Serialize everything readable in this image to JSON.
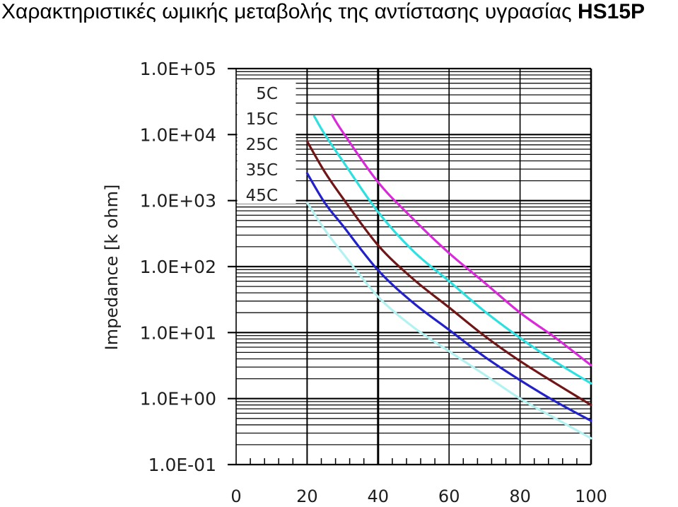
{
  "page": {
    "title": "Χαρακτηριστικές ωμικής μεταβολής της αντίστασης υγρασίας",
    "title_model": "HS15P"
  },
  "chart_data": {
    "type": "line",
    "ylabel": "Impedance [k ohm]",
    "xlim": [
      0,
      100
    ],
    "ylim": [
      0.1,
      100000
    ],
    "yscale": "log",
    "grid": true,
    "legend_position": "top-left",
    "x_ticks": [
      {
        "value": 0,
        "label": "0"
      },
      {
        "value": 20,
        "label": "20"
      },
      {
        "value": 40,
        "label": "40"
      },
      {
        "value": 60,
        "label": "60"
      },
      {
        "value": 80,
        "label": "80"
      },
      {
        "value": 100,
        "label": "100"
      }
    ],
    "y_ticks": [
      {
        "value": 100000,
        "label": "1.0E+05"
      },
      {
        "value": 10000,
        "label": "1.0E+04"
      },
      {
        "value": 1000,
        "label": "1.0E+03"
      },
      {
        "value": 100,
        "label": "1.0E+02"
      },
      {
        "value": 10,
        "label": "1.0E+01"
      },
      {
        "value": 1,
        "label": "1.0E+00"
      },
      {
        "value": 0.1,
        "label": "1.0E-01"
      }
    ],
    "series": [
      {
        "name": "5C",
        "color": "#d82ad8",
        "x": [
          27,
          30,
          40,
          50,
          60,
          70,
          80,
          90,
          100
        ],
        "y": [
          20000,
          11000,
          1900,
          520,
          160,
          57,
          20,
          8.3,
          3.2
        ]
      },
      {
        "name": "15C",
        "color": "#2ee0e0",
        "x": [
          22,
          25,
          30,
          40,
          50,
          60,
          70,
          80,
          90,
          100
        ],
        "y": [
          19000,
          10000,
          4000,
          670,
          170,
          60,
          21,
          8.3,
          3.6,
          1.7
        ]
      },
      {
        "name": "25C",
        "color": "#701616",
        "x": [
          20,
          25,
          30,
          40,
          50,
          60,
          70,
          80,
          90,
          100
        ],
        "y": [
          7900,
          2700,
          1100,
          210,
          64,
          24,
          8.9,
          3.7,
          1.7,
          0.8
        ]
      },
      {
        "name": "35C",
        "color": "#2222c8",
        "x": [
          20,
          25,
          30,
          40,
          50,
          60,
          70,
          80,
          90,
          100
        ],
        "y": [
          2600,
          920,
          420,
          88,
          28,
          11,
          4.3,
          1.9,
          0.9,
          0.46
        ]
      },
      {
        "name": "45C",
        "color": "#b4f2f2",
        "x": [
          20,
          25,
          30,
          40,
          50,
          60,
          70,
          80,
          90,
          100
        ],
        "y": [
          930,
          360,
          160,
          35,
          12,
          5.2,
          2.3,
          1.0,
          0.5,
          0.25
        ]
      }
    ]
  }
}
